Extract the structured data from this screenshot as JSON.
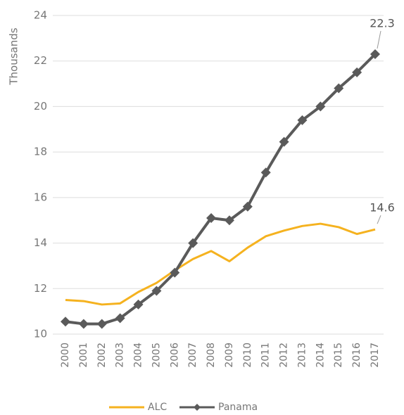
{
  "chart_data": {
    "type": "line",
    "y_label": "Thousands",
    "categories": [
      "2000",
      "2001",
      "2002",
      "2003",
      "2004",
      "2005",
      "2006",
      "2007",
      "2008",
      "2009",
      "2010",
      "2011",
      "2012",
      "2013",
      "2014",
      "2015",
      "2016",
      "2017"
    ],
    "series": [
      {
        "name": "ALC",
        "color": "#f5b21f",
        "values": [
          11.5,
          11.45,
          11.3,
          11.35,
          11.85,
          12.25,
          12.8,
          13.3,
          13.65,
          13.2,
          13.8,
          14.3,
          14.55,
          14.75,
          14.85,
          14.7,
          14.4,
          14.6
        ]
      },
      {
        "name": "Panama",
        "color": "#5a5a5a",
        "values": [
          10.55,
          10.45,
          10.45,
          10.7,
          11.3,
          11.9,
          12.7,
          14.0,
          15.1,
          15.0,
          15.6,
          17.1,
          18.45,
          19.4,
          20.0,
          20.8,
          21.5,
          22.3
        ]
      }
    ],
    "ylim": [
      10,
      24
    ],
    "yticks": [
      10,
      12,
      14,
      16,
      18,
      20,
      22,
      24
    ],
    "grid": true
  }
}
